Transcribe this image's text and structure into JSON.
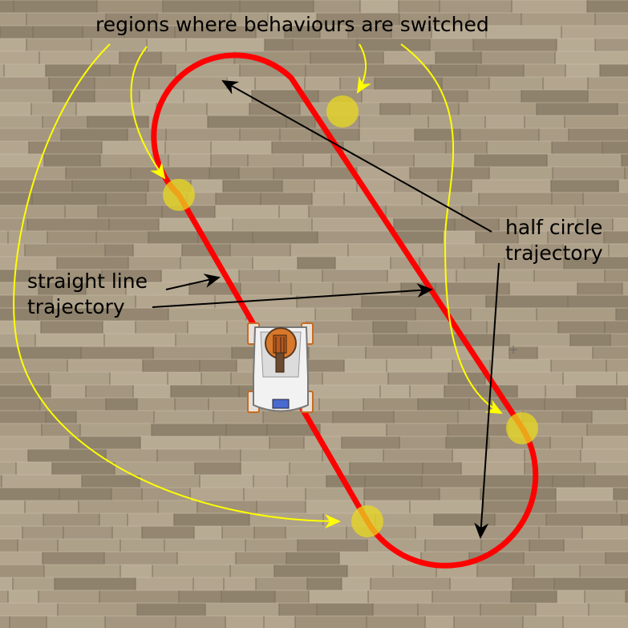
{
  "labels": {
    "switch_regions": "regions where behaviours are switched",
    "straight_line_line1": "straight line",
    "straight_line_line2": "trajectory",
    "half_circle_line1": "half circle",
    "half_circle_line2": "trajectory"
  },
  "colors": {
    "trajectory": "#ff0000",
    "switch_region": "#e8d820",
    "annotation_arrow_yellow": "#ffff00",
    "annotation_arrow_black": "#000000",
    "floor": "#a89a84"
  },
  "icons": {
    "robot": "mobile-robot-top-view-icon",
    "crosshair": "crosshair-icon"
  }
}
